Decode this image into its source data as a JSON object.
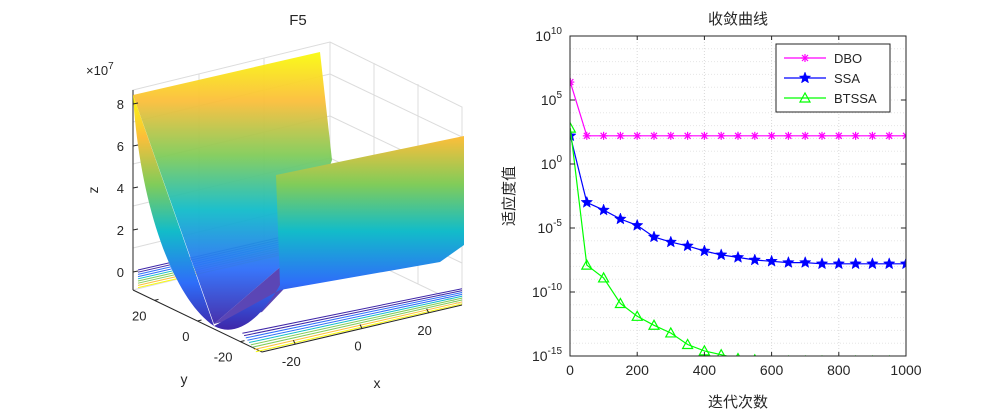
{
  "chart_data": [
    {
      "type": "surface3d",
      "title": "F5",
      "xlabel": "x",
      "ylabel": "y",
      "zlabel": "z",
      "z_exponent_label": "×10",
      "z_exponent_power": "7",
      "x_ticks": [
        "-20",
        "0",
        "20"
      ],
      "y_ticks": [
        "-20",
        "0",
        "20"
      ],
      "z_ticks": [
        "0",
        "2",
        "4",
        "6",
        "8"
      ],
      "xlim": [
        -30,
        30
      ],
      "ylim": [
        -30,
        30
      ],
      "zlim": [
        0,
        90000000
      ],
      "contour_projection": true,
      "colormap": [
        "#3e26a8",
        "#2e6ef9",
        "#12bcc9",
        "#81cc59",
        "#fbbe3a",
        "#f9fb0e"
      ]
    },
    {
      "type": "line",
      "title": "收敛曲线",
      "xlabel": "迭代次数",
      "ylabel": "适应度值",
      "xlim": [
        0,
        1000
      ],
      "ylim_exponent": [
        -15,
        10
      ],
      "y_scale": "log",
      "grid": true,
      "legend_position": "top-right",
      "x_ticks": [
        "0",
        "200",
        "400",
        "600",
        "800",
        "1000"
      ],
      "y_tick_base": "10",
      "y_tick_exponents": [
        "10",
        "5",
        "0",
        "-5",
        "-10",
        "-15"
      ],
      "series": [
        {
          "name": "DBO",
          "color": "#ff00ff",
          "marker": "asterisk",
          "x": [
            1,
            50,
            100,
            150,
            200,
            250,
            300,
            350,
            400,
            450,
            500,
            550,
            600,
            650,
            700,
            750,
            800,
            850,
            900,
            950,
            1000
          ],
          "log10_y": [
            6.4,
            2.2,
            2.2,
            2.2,
            2.2,
            2.2,
            2.2,
            2.2,
            2.2,
            2.2,
            2.2,
            2.2,
            2.2,
            2.2,
            2.2,
            2.2,
            2.2,
            2.2,
            2.2,
            2.2,
            2.2
          ]
        },
        {
          "name": "SSA",
          "color": "#0000ff",
          "marker": "star",
          "x": [
            1,
            50,
            100,
            150,
            200,
            250,
            300,
            350,
            400,
            450,
            500,
            550,
            600,
            650,
            700,
            750,
            800,
            850,
            900,
            950,
            1000
          ],
          "log10_y": [
            2.2,
            -3.0,
            -3.6,
            -4.3,
            -4.8,
            -5.7,
            -6.1,
            -6.4,
            -6.8,
            -7.1,
            -7.3,
            -7.5,
            -7.6,
            -7.7,
            -7.7,
            -7.8,
            -7.8,
            -7.8,
            -7.8,
            -7.8,
            -7.8
          ]
        },
        {
          "name": "BTSSA",
          "color": "#00ff00",
          "marker": "triangle",
          "x": [
            1,
            50,
            100,
            150,
            200,
            250,
            300,
            350,
            400,
            450,
            500,
            550,
            600,
            650,
            700,
            750,
            800,
            850,
            900,
            950,
            1000
          ],
          "log10_y": [
            2.8,
            -7.9,
            -8.9,
            -10.9,
            -11.9,
            -12.6,
            -13.2,
            -14.1,
            -14.6,
            -14.9,
            -15.2,
            -15.3,
            -15.4,
            -15.4,
            -15.4,
            -15.4,
            -15.4,
            -15.4,
            -15.4,
            -15.4,
            -15.4
          ]
        }
      ]
    }
  ]
}
